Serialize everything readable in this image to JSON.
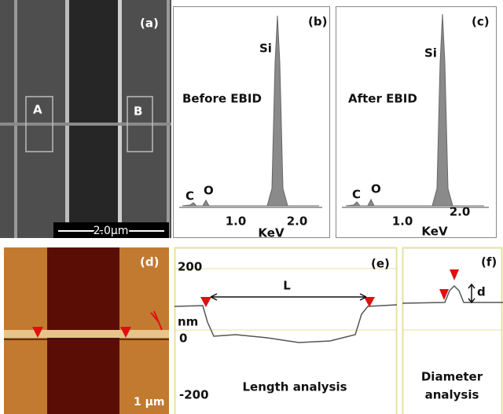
{
  "panels": {
    "a": {
      "label": "(a)",
      "regions": [
        "A",
        "B"
      ],
      "scale_bar": "2.0µm"
    },
    "b": {
      "label": "(b)",
      "peak": "Si",
      "condition": "Before EBID",
      "minor_peaks": [
        "C",
        "O"
      ],
      "ticks": [
        "1.0",
        "2.0"
      ],
      "axis_label": "KeV"
    },
    "c": {
      "label": "(c)",
      "peak": "Si",
      "condition": "After EBID",
      "minor_peaks": [
        "C",
        "O"
      ],
      "ticks": [
        "1.0",
        "2.0"
      ],
      "axis_label": "KeV"
    },
    "d": {
      "label": "(d)",
      "scale_bar": "1 µm"
    },
    "e": {
      "label": "(e)",
      "ticks": [
        "200",
        "0",
        "-200"
      ],
      "unit": "nm",
      "length": "L",
      "caption": "Length analysis"
    },
    "f": {
      "label": "(f)",
      "diameter": "d",
      "caption": [
        "Diameter",
        "analysis"
      ]
    }
  }
}
